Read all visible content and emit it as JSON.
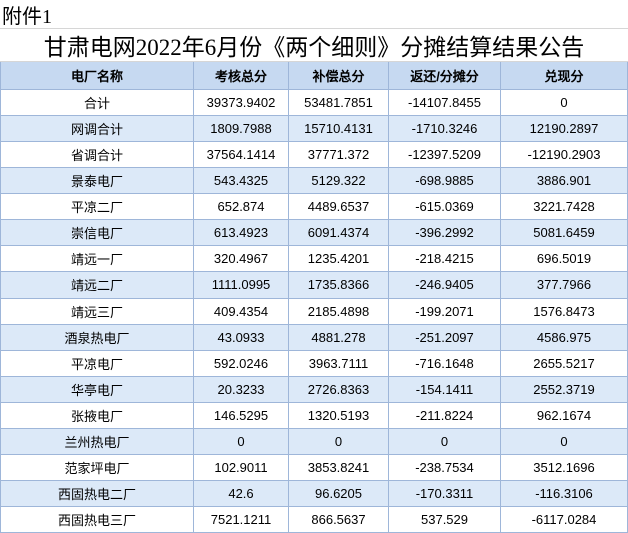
{
  "attachment_label": "附件1",
  "title": "甘肃电网2022年6月份《两个细则》分摊结算结果公告",
  "table": {
    "columns": [
      "电厂名称",
      "考核总分",
      "补偿总分",
      "返还/分摊分",
      "兑现分"
    ],
    "rows": [
      [
        "合计",
        "39373.9402",
        "53481.7851",
        "-14107.8455",
        "0"
      ],
      [
        "网调合计",
        "1809.7988",
        "15710.4131",
        "-1710.3246",
        "12190.2897"
      ],
      [
        "省调合计",
        "37564.1414",
        "37771.372",
        "-12397.5209",
        "-12190.2903"
      ],
      [
        "景泰电厂",
        "543.4325",
        "5129.322",
        "-698.9885",
        "3886.901"
      ],
      [
        "平凉二厂",
        "652.874",
        "4489.6537",
        "-615.0369",
        "3221.7428"
      ],
      [
        "崇信电厂",
        "613.4923",
        "6091.4374",
        "-396.2992",
        "5081.6459"
      ],
      [
        "靖远一厂",
        "320.4967",
        "1235.4201",
        "-218.4215",
        "696.5019"
      ],
      [
        "靖远二厂",
        "1111.0995",
        "1735.8366",
        "-246.9405",
        "377.7966"
      ],
      [
        "靖远三厂",
        "409.4354",
        "2185.4898",
        "-199.2071",
        "1576.8473"
      ],
      [
        "酒泉热电厂",
        "43.0933",
        "4881.278",
        "-251.2097",
        "4586.975"
      ],
      [
        "平凉电厂",
        "592.0246",
        "3963.7111",
        "-716.1648",
        "2655.5217"
      ],
      [
        "华亭电厂",
        "20.3233",
        "2726.8363",
        "-154.1411",
        "2552.3719"
      ],
      [
        "张掖电厂",
        "146.5295",
        "1320.5193",
        "-211.8224",
        "962.1674"
      ],
      [
        "兰州热电厂",
        "0",
        "0",
        "0",
        "0"
      ],
      [
        "范家坪电厂",
        "102.9011",
        "3853.8241",
        "-238.7534",
        "3512.1696"
      ],
      [
        "西固热电二厂",
        "42.6",
        "96.6205",
        "-170.3311",
        "-116.3106"
      ],
      [
        "西固热电三厂",
        "7521.1211",
        "866.5637",
        "537.529",
        "-6117.0284"
      ]
    ]
  },
  "colors": {
    "header_bg": "#c6d9f1",
    "alt_row_bg": "#dce9f8",
    "grid_border": "#9eb6d9",
    "title_border": "#d6d6d6"
  }
}
